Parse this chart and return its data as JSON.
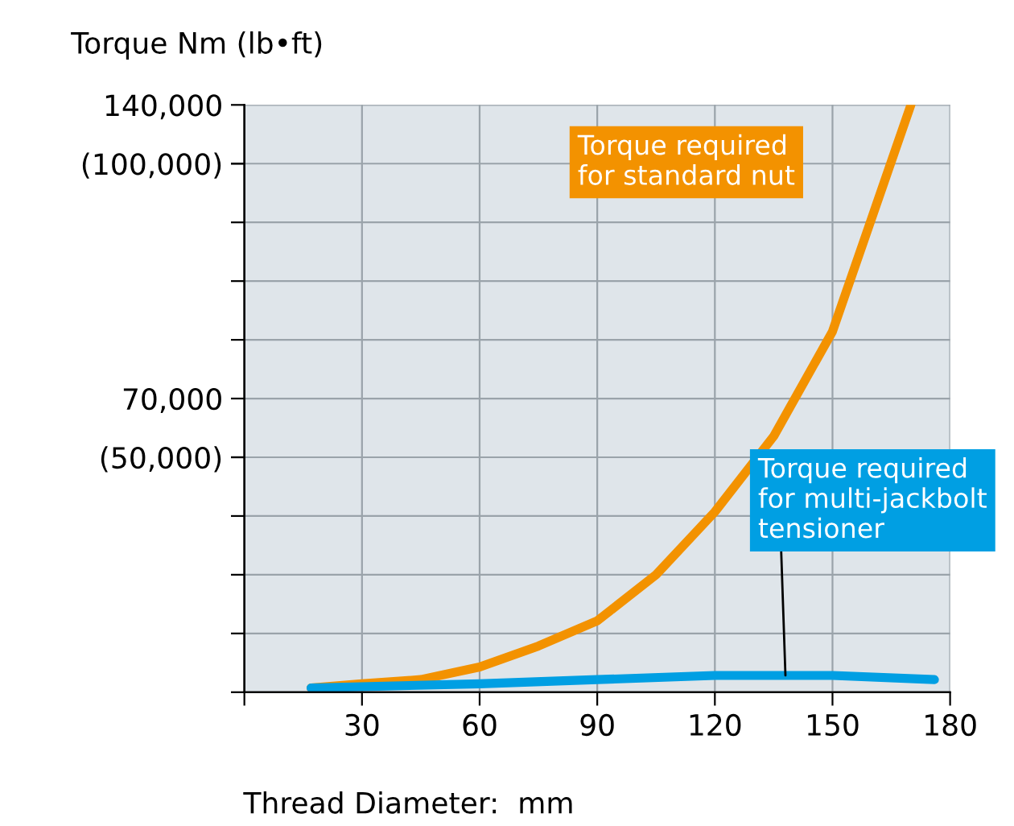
{
  "chart_data": {
    "type": "line",
    "ylabel": "Torque Nm (lb•ft)",
    "xlabel": "Thread Diameter:  mm",
    "xlim": [
      0,
      180
    ],
    "xticks": [
      {
        "value": 0,
        "label": null
      },
      30,
      60,
      90,
      120,
      150,
      180
    ],
    "ylim": [
      0,
      140000
    ],
    "yticks": [
      {
        "value": 0,
        "label": null
      },
      {
        "value": 14000,
        "label": null
      },
      {
        "value": 28000,
        "label": null
      },
      {
        "value": 42000,
        "label": null
      },
      {
        "value": 56000,
        "label": null
      },
      {
        "value": 70000,
        "label": "70,000"
      },
      {
        "value": 84000,
        "label": null
      },
      {
        "value": 98000,
        "label": null
      },
      {
        "value": 112000,
        "label": null
      },
      {
        "value": 126000,
        "label": null
      },
      {
        "value": 140000,
        "label": "140,000"
      }
    ],
    "y2lim": [
      10000,
      110000
    ],
    "y2ticks": [
      {
        "value": 50000,
        "label": "(50,000)"
      },
      {
        "value": 100000,
        "label": "(100,000)"
      }
    ],
    "grid": true,
    "legend": false,
    "series": [
      {
        "name": "Torque required\nfor standard nut",
        "color": "#f39200",
        "x": [
          17,
          30,
          45,
          60,
          75,
          90,
          105,
          120,
          135,
          150,
          160,
          170
        ],
        "values": [
          1000,
          2000,
          3000,
          6000,
          11000,
          17000,
          28000,
          43000,
          61000,
          86000,
          113000,
          140000
        ]
      },
      {
        "name": "Torque required\nfor multi-jackbolt\ntensioner",
        "color": "#009fe3",
        "x": [
          17,
          60,
          90,
          120,
          150,
          176
        ],
        "values": [
          1000,
          2000,
          3000,
          4000,
          4000,
          3000
        ]
      }
    ]
  }
}
